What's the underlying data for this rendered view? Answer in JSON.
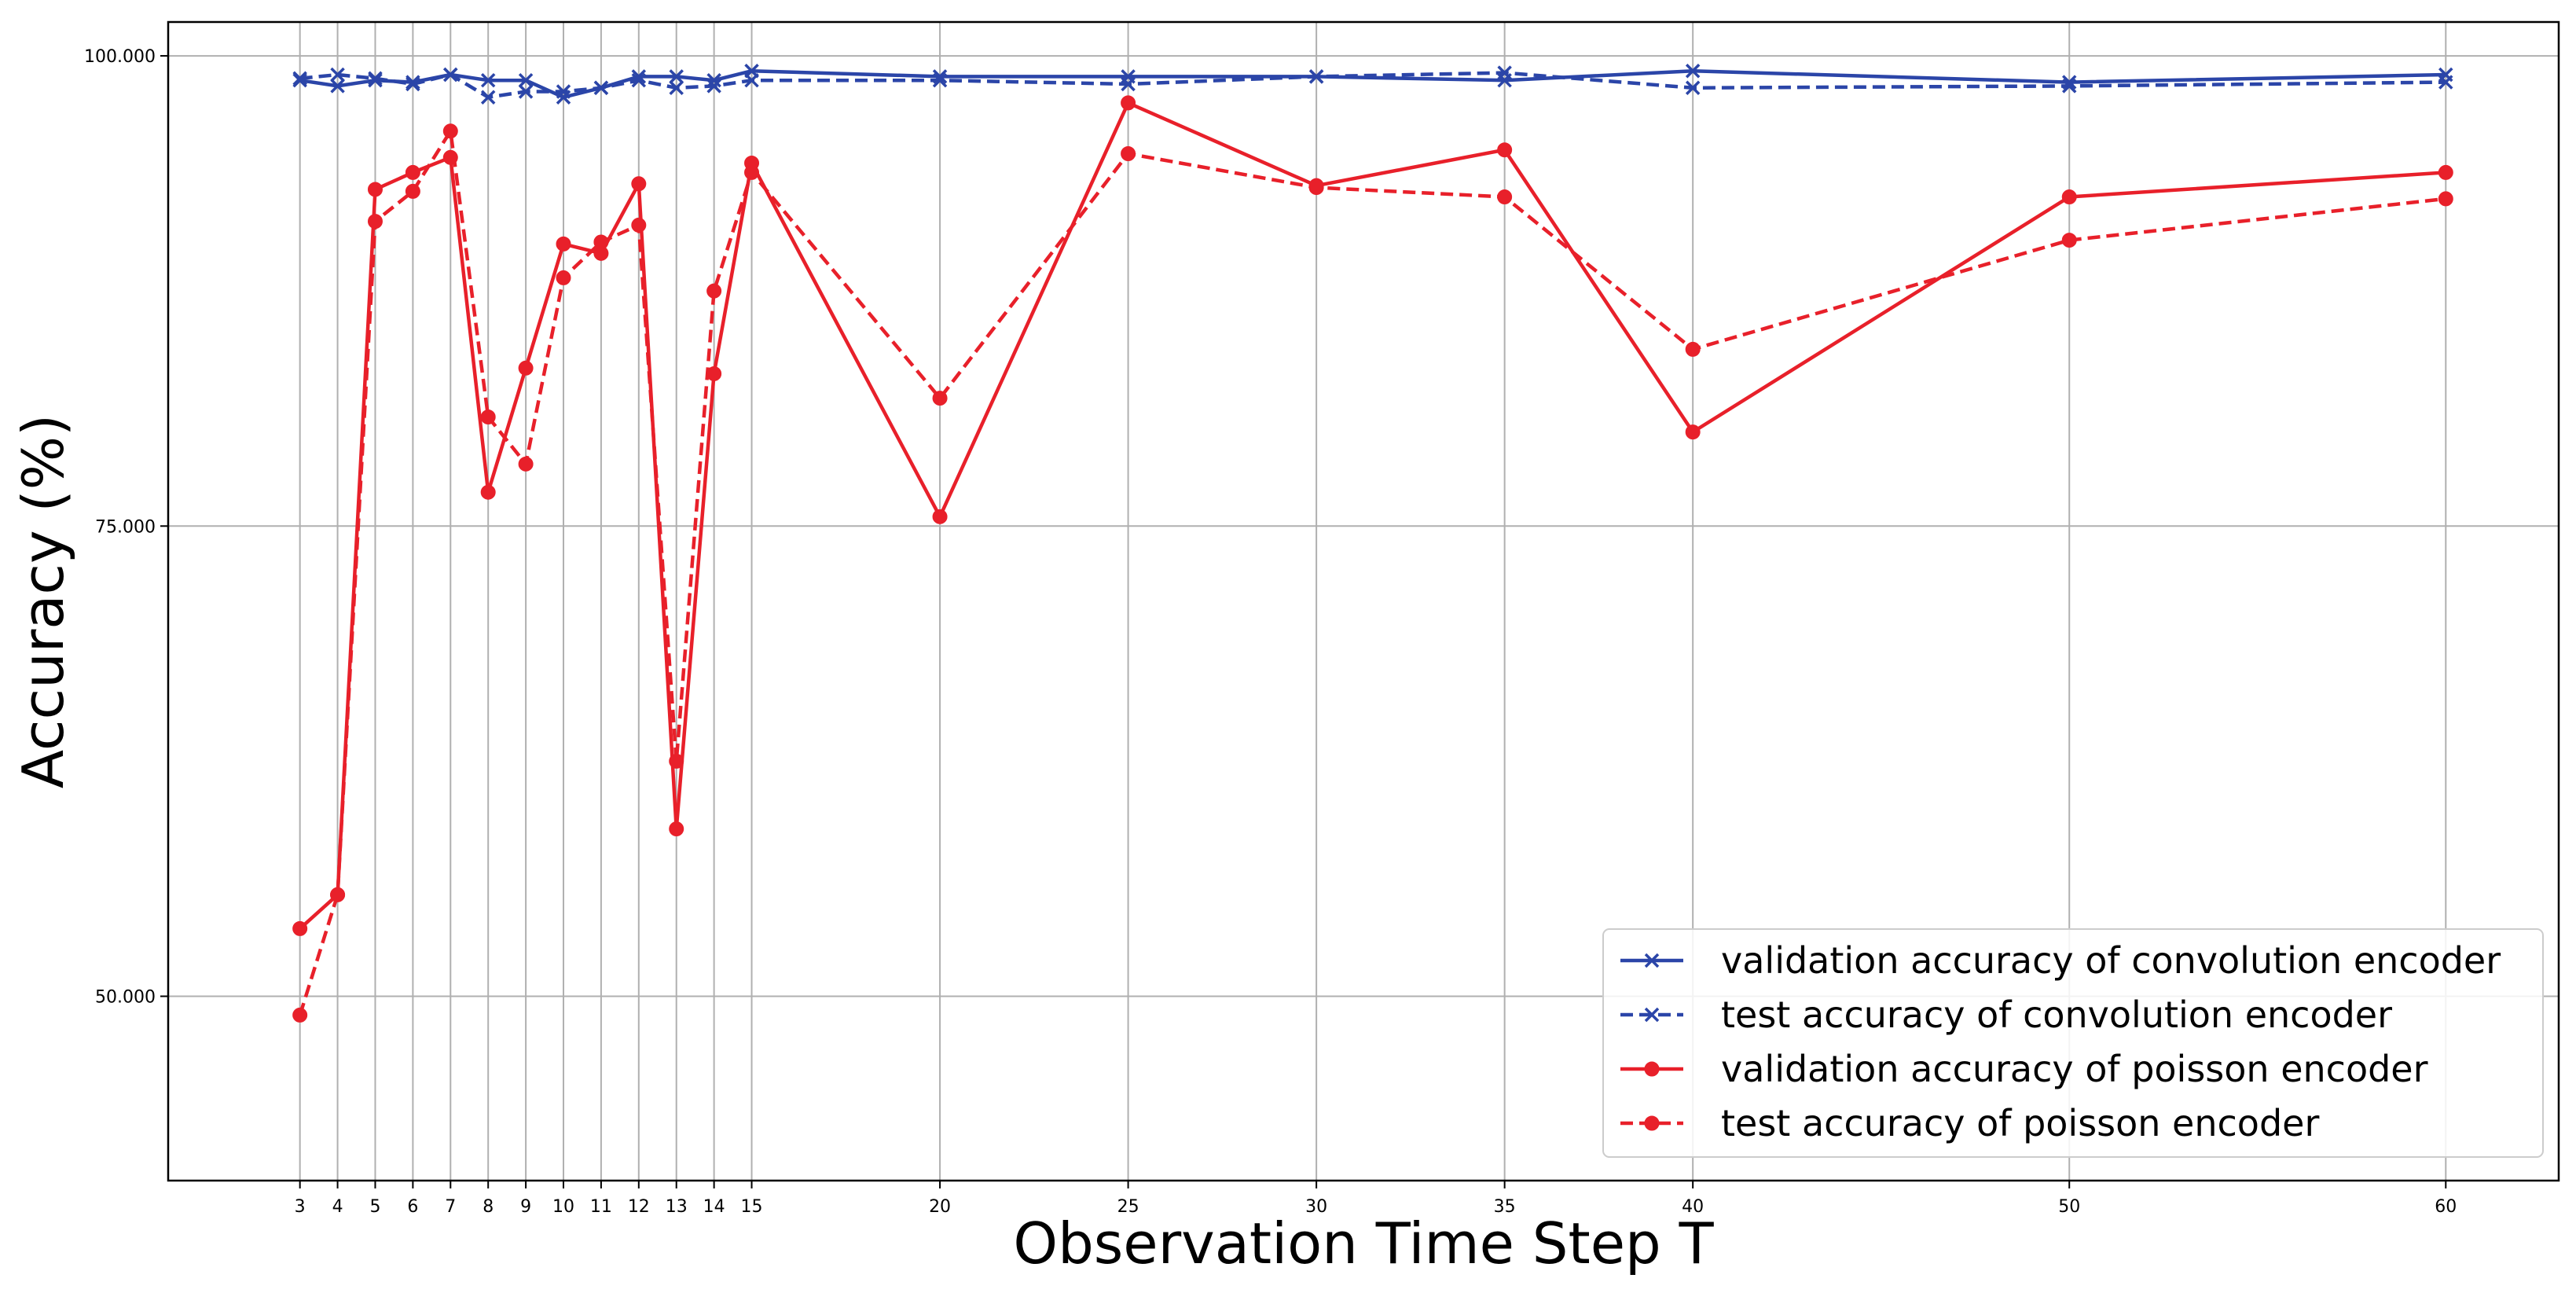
{
  "chart_data": {
    "type": "line",
    "title": "",
    "xlabel": "Observation Time Step T",
    "ylabel": "Accuracy (%)",
    "x": [
      3,
      4,
      5,
      6,
      7,
      8,
      9,
      10,
      11,
      12,
      13,
      14,
      15,
      20,
      25,
      30,
      35,
      40,
      50,
      60
    ],
    "xlim": [
      -0.5,
      63
    ],
    "ylim": [
      40.2,
      101.8
    ],
    "yticks": [
      50,
      75,
      100
    ],
    "ytick_labels": [
      "50.000",
      "75.000",
      "100.000"
    ],
    "grid": true,
    "legend_position": "lower-right",
    "series": [
      {
        "name": "validation accuracy of convolution encoder",
        "color": "#2b45a8",
        "linestyle": "solid",
        "marker": "x",
        "values": [
          98.7,
          98.4,
          98.7,
          98.6,
          99.0,
          98.7,
          98.7,
          97.8,
          98.3,
          98.9,
          98.9,
          98.7,
          99.2,
          98.9,
          98.9,
          98.9,
          98.7,
          99.2,
          98.6,
          99.0
        ]
      },
      {
        "name": "test accuracy of convolution encoder",
        "color": "#2b45a8",
        "linestyle": "dashed",
        "marker": "x",
        "values": [
          98.8,
          99.0,
          98.8,
          98.5,
          99.0,
          97.8,
          98.1,
          98.1,
          98.3,
          98.7,
          98.3,
          98.4,
          98.7,
          98.7,
          98.5,
          98.9,
          99.1,
          98.3,
          98.4,
          98.6
        ]
      },
      {
        "name": "validation accuracy of poisson encoder",
        "color": "#e8202a",
        "linestyle": "solid",
        "marker": "o",
        "values": [
          53.6,
          55.4,
          92.9,
          93.8,
          94.6,
          76.8,
          83.4,
          90.0,
          89.5,
          93.2,
          58.9,
          83.1,
          94.3,
          75.5,
          97.5,
          93.1,
          95.0,
          80.0,
          92.5,
          93.8
        ]
      },
      {
        "name": "test accuracy of poisson encoder",
        "color": "#e8202a",
        "linestyle": "dashed",
        "marker": "o",
        "values": [
          49.0,
          55.4,
          91.2,
          92.8,
          96.0,
          80.8,
          78.3,
          88.2,
          90.1,
          91.0,
          62.5,
          87.5,
          93.8,
          81.8,
          94.8,
          93.0,
          92.5,
          84.4,
          90.2,
          92.4
        ]
      }
    ]
  }
}
